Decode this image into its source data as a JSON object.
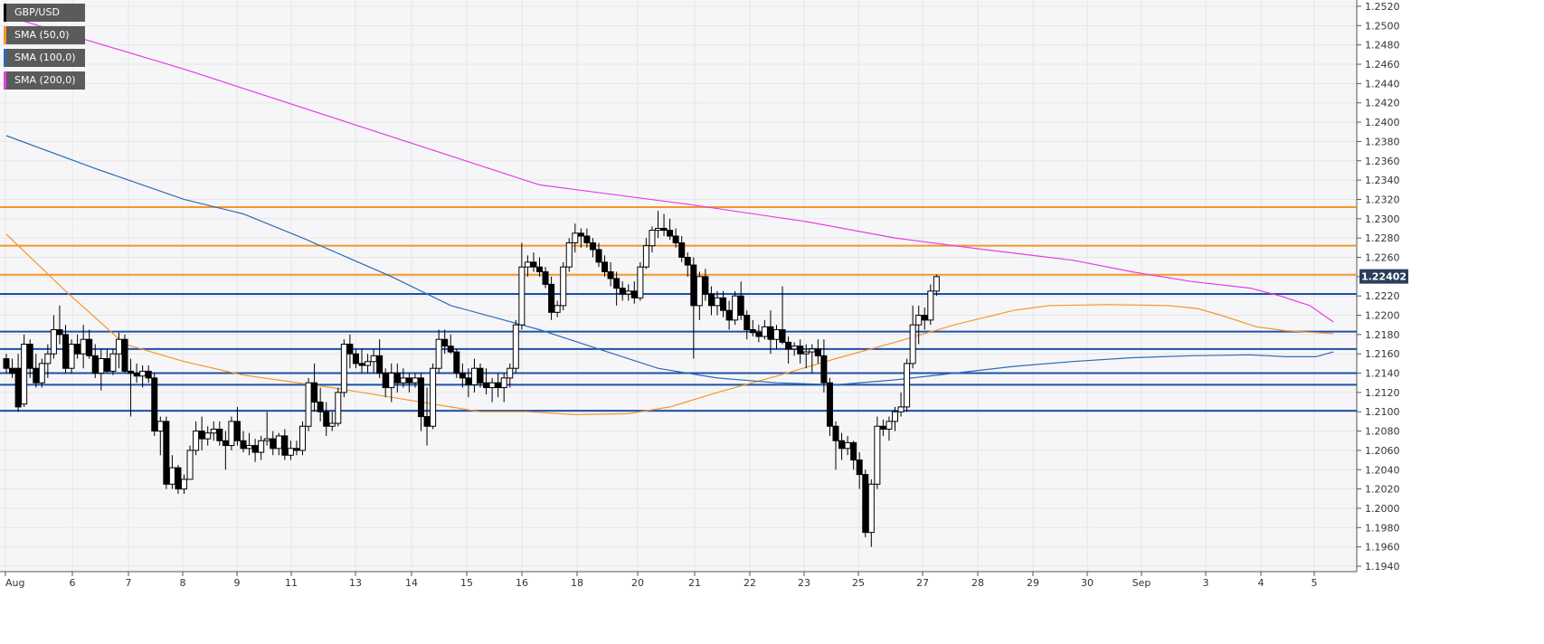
{
  "chart_data": {
    "type": "candlestick",
    "symbol": "GBP/USD",
    "last_price": "1.22402",
    "ylim": [
      1.194,
      1.252
    ],
    "grid": true,
    "y_ticks": [
      "1.1940",
      "1.1960",
      "1.1980",
      "1.2000",
      "1.2020",
      "1.2040",
      "1.2060",
      "1.2080",
      "1.2100",
      "1.2120",
      "1.2140",
      "1.2160",
      "1.2180",
      "1.2200",
      "1.2220",
      "1.2240",
      "1.2260",
      "1.2280",
      "1.2300",
      "1.2320",
      "1.2340",
      "1.2360",
      "1.2380",
      "1.2400",
      "1.2420",
      "1.2440",
      "1.2460",
      "1.2480",
      "1.2500",
      "1.2520"
    ],
    "x_ticks": [
      "Aug",
      "6",
      "7",
      "8",
      "9",
      "11",
      "13",
      "14",
      "15",
      "16",
      "18",
      "20",
      "21",
      "22",
      "23",
      "25",
      "27",
      "28",
      "29",
      "30",
      "Sep",
      "3",
      "4",
      "5"
    ],
    "legend": {
      "placement": "top-left",
      "items": [
        {
          "label": "GBP/USD",
          "color": "#000000"
        },
        {
          "label": "SMA (50,0)",
          "color": "#f5962a"
        },
        {
          "label": "SMA (100,0)",
          "color": "#2c6cb7"
        },
        {
          "label": "SMA (200,0)",
          "color": "#e63ce6"
        }
      ]
    },
    "colors": {
      "bull": "#ffffff",
      "bear": "#000000",
      "wick": "#000000",
      "grid": "#e6e6e6",
      "axis": "#555555",
      "label_bg": "#2b3f5c"
    },
    "horizontal_levels": [
      {
        "value": 1.2312,
        "color": "#f5962a"
      },
      {
        "value": 1.2272,
        "color": "#f5962a"
      },
      {
        "value": 1.2242,
        "color": "#f5962a"
      },
      {
        "value": 1.2222,
        "color": "#1e4fa8"
      },
      {
        "value": 1.2183,
        "color": "#1e4fa8"
      },
      {
        "value": 1.2165,
        "color": "#1e4fa8"
      },
      {
        "value": 1.214,
        "color": "#1e4fa8"
      },
      {
        "value": 1.2128,
        "color": "#1e4fa8"
      },
      {
        "value": 1.2101,
        "color": "#1e4fa8"
      }
    ],
    "candles": [
      [
        1.2155,
        1.216,
        1.214,
        1.2145
      ],
      [
        1.2145,
        1.2155,
        1.2135,
        1.214
      ],
      [
        1.2145,
        1.216,
        1.21,
        1.2105
      ],
      [
        1.2108,
        1.218,
        1.2105,
        1.217
      ],
      [
        1.217,
        1.2175,
        1.2135,
        1.2145
      ],
      [
        1.2145,
        1.216,
        1.2125,
        1.213
      ],
      [
        1.213,
        1.2155,
        1.2125,
        1.215
      ],
      [
        1.215,
        1.217,
        1.2135,
        1.216
      ],
      [
        1.216,
        1.22,
        1.2155,
        1.2185
      ],
      [
        1.2185,
        1.221,
        1.217,
        1.218
      ],
      [
        1.218,
        1.219,
        1.214,
        1.2145
      ],
      [
        1.2145,
        1.2175,
        1.214,
        1.217
      ],
      [
        1.217,
        1.218,
        1.2155,
        1.216
      ],
      [
        1.216,
        1.219,
        1.2145,
        1.2175
      ],
      [
        1.2175,
        1.2185,
        1.2155,
        1.2158
      ],
      [
        1.2158,
        1.217,
        1.2135,
        1.214
      ],
      [
        1.214,
        1.2165,
        1.2122,
        1.2155
      ],
      [
        1.2155,
        1.2165,
        1.214,
        1.2142
      ],
      [
        1.2142,
        1.2165,
        1.2138,
        1.216
      ],
      [
        1.216,
        1.2182,
        1.2145,
        1.2175
      ],
      [
        1.2175,
        1.218,
        1.214,
        1.2142
      ],
      [
        1.2142,
        1.2155,
        1.2095,
        1.214
      ],
      [
        1.214,
        1.215,
        1.213,
        1.2137
      ],
      [
        1.2137,
        1.2148,
        1.2125,
        1.2142
      ],
      [
        1.2142,
        1.2148,
        1.213,
        1.2135
      ],
      [
        1.2135,
        1.214,
        1.2075,
        1.208
      ],
      [
        1.208,
        1.2095,
        1.2055,
        1.209
      ],
      [
        1.209,
        1.2095,
        1.202,
        1.2025
      ],
      [
        1.2025,
        1.2055,
        1.202,
        1.2042
      ],
      [
        1.2042,
        1.2045,
        1.2015,
        1.202
      ],
      [
        1.202,
        1.2035,
        1.2015,
        1.203
      ],
      [
        1.203,
        1.2065,
        1.203,
        1.206
      ],
      [
        1.206,
        1.209,
        1.2055,
        1.208
      ],
      [
        1.208,
        1.2095,
        1.206,
        1.2072
      ],
      [
        1.2072,
        1.2085,
        1.2065,
        1.2078
      ],
      [
        1.2078,
        1.209,
        1.207,
        1.2082
      ],
      [
        1.2082,
        1.209,
        1.2065,
        1.207
      ],
      [
        1.207,
        1.208,
        1.204,
        1.2065
      ],
      [
        1.2065,
        1.2095,
        1.206,
        1.209
      ],
      [
        1.209,
        1.2105,
        1.2065,
        1.207
      ],
      [
        1.207,
        1.208,
        1.2058,
        1.2062
      ],
      [
        1.2062,
        1.2078,
        1.2055,
        1.2065
      ],
      [
        1.2065,
        1.2072,
        1.2048,
        1.2058
      ],
      [
        1.2058,
        1.2075,
        1.205,
        1.207
      ],
      [
        1.207,
        1.21,
        1.2065,
        1.2072
      ],
      [
        1.2072,
        1.208,
        1.2055,
        1.2062
      ],
      [
        1.2062,
        1.2078,
        1.2055,
        1.2075
      ],
      [
        1.2075,
        1.2082,
        1.205,
        1.2055
      ],
      [
        1.2055,
        1.207,
        1.205,
        1.2062
      ],
      [
        1.2062,
        1.207,
        1.2055,
        1.206
      ],
      [
        1.206,
        1.209,
        1.2055,
        1.2085
      ],
      [
        1.2085,
        1.2135,
        1.208,
        1.213
      ],
      [
        1.213,
        1.215,
        1.21,
        1.211
      ],
      [
        1.211,
        1.2125,
        1.209,
        1.21
      ],
      [
        1.21,
        1.211,
        1.2075,
        1.2085
      ],
      [
        1.2085,
        1.21,
        1.208,
        1.2088
      ],
      [
        1.2088,
        1.2125,
        1.2085,
        1.212
      ],
      [
        1.212,
        1.2175,
        1.2115,
        1.217
      ],
      [
        1.217,
        1.218,
        1.2145,
        1.216
      ],
      [
        1.216,
        1.2165,
        1.2145,
        1.215
      ],
      [
        1.215,
        1.2165,
        1.214,
        1.2148
      ],
      [
        1.2148,
        1.216,
        1.214,
        1.2152
      ],
      [
        1.2152,
        1.2165,
        1.214,
        1.2158
      ],
      [
        1.2158,
        1.2175,
        1.2135,
        1.214
      ],
      [
        1.214,
        1.2145,
        1.2115,
        1.2125
      ],
      [
        1.2125,
        1.215,
        1.211,
        1.214
      ],
      [
        1.214,
        1.215,
        1.212,
        1.213
      ],
      [
        1.213,
        1.2145,
        1.2125,
        1.2135
      ],
      [
        1.2135,
        1.214,
        1.212,
        1.213
      ],
      [
        1.213,
        1.214,
        1.2125,
        1.2135
      ],
      [
        1.2135,
        1.214,
        1.208,
        1.2095
      ],
      [
        1.2095,
        1.2125,
        1.2065,
        1.2085
      ],
      [
        1.2085,
        1.215,
        1.2082,
        1.2145
      ],
      [
        1.2145,
        1.2185,
        1.214,
        1.2175
      ],
      [
        1.2175,
        1.2185,
        1.216,
        1.2168
      ],
      [
        1.2168,
        1.218,
        1.216,
        1.2162
      ],
      [
        1.2162,
        1.2165,
        1.2135,
        1.214
      ],
      [
        1.214,
        1.215,
        1.2125,
        1.2135
      ],
      [
        1.2135,
        1.2145,
        1.2115,
        1.2128
      ],
      [
        1.2128,
        1.2155,
        1.212,
        1.2145
      ],
      [
        1.2145,
        1.215,
        1.2125,
        1.213
      ],
      [
        1.213,
        1.2145,
        1.2118,
        1.2125
      ],
      [
        1.2125,
        1.2135,
        1.211,
        1.213
      ],
      [
        1.213,
        1.214,
        1.2115,
        1.2125
      ],
      [
        1.2125,
        1.214,
        1.211,
        1.2135
      ],
      [
        1.2135,
        1.215,
        1.2125,
        1.2145
      ],
      [
        1.2145,
        1.2195,
        1.214,
        1.219
      ],
      [
        1.219,
        1.2275,
        1.2185,
        1.225
      ],
      [
        1.225,
        1.2262,
        1.224,
        1.2255
      ],
      [
        1.2255,
        1.2265,
        1.2245,
        1.225
      ],
      [
        1.225,
        1.226,
        1.224,
        1.2245
      ],
      [
        1.2245,
        1.225,
        1.2228,
        1.2232
      ],
      [
        1.2232,
        1.224,
        1.2195,
        1.2203
      ],
      [
        1.2203,
        1.2215,
        1.2198,
        1.221
      ],
      [
        1.221,
        1.2255,
        1.2205,
        1.225
      ],
      [
        1.225,
        1.228,
        1.2245,
        1.2275
      ],
      [
        1.2275,
        1.2295,
        1.2265,
        1.2285
      ],
      [
        1.2285,
        1.229,
        1.227,
        1.2282
      ],
      [
        1.2282,
        1.229,
        1.227,
        1.2275
      ],
      [
        1.2275,
        1.228,
        1.226,
        1.2268
      ],
      [
        1.2268,
        1.2275,
        1.225,
        1.2255
      ],
      [
        1.2255,
        1.2262,
        1.224,
        1.2245
      ],
      [
        1.2245,
        1.2255,
        1.223,
        1.2238
      ],
      [
        1.2238,
        1.2245,
        1.221,
        1.2228
      ],
      [
        1.2228,
        1.2235,
        1.2215,
        1.2222
      ],
      [
        1.2222,
        1.2232,
        1.2215,
        1.2225
      ],
      [
        1.2225,
        1.2235,
        1.2212,
        1.2218
      ],
      [
        1.2218,
        1.2255,
        1.2215,
        1.225
      ],
      [
        1.225,
        1.228,
        1.2248,
        1.2272
      ],
      [
        1.2272,
        1.2292,
        1.2265,
        1.2288
      ],
      [
        1.2288,
        1.2308,
        1.228,
        1.229
      ],
      [
        1.229,
        1.2305,
        1.2282,
        1.2288
      ],
      [
        1.2288,
        1.23,
        1.2278,
        1.2282
      ],
      [
        1.2282,
        1.229,
        1.227,
        1.2275
      ],
      [
        1.2275,
        1.2282,
        1.2255,
        1.226
      ],
      [
        1.226,
        1.2265,
        1.224,
        1.2252
      ],
      [
        1.2252,
        1.226,
        1.2155,
        1.221
      ],
      [
        1.221,
        1.2245,
        1.2195,
        1.224
      ],
      [
        1.224,
        1.2248,
        1.2215,
        1.2222
      ],
      [
        1.2222,
        1.223,
        1.22,
        1.221
      ],
      [
        1.221,
        1.2225,
        1.22,
        1.2218
      ],
      [
        1.2218,
        1.2225,
        1.2198,
        1.2205
      ],
      [
        1.2205,
        1.2215,
        1.2185,
        1.2195
      ],
      [
        1.2195,
        1.2225,
        1.219,
        1.222
      ],
      [
        1.222,
        1.2235,
        1.2195,
        1.22
      ],
      [
        1.22,
        1.2205,
        1.2175,
        1.2185
      ],
      [
        1.2185,
        1.2195,
        1.2178,
        1.2182
      ],
      [
        1.2182,
        1.219,
        1.2172,
        1.2178
      ],
      [
        1.2178,
        1.2195,
        1.2175,
        1.2188
      ],
      [
        1.2188,
        1.2205,
        1.216,
        1.2175
      ],
      [
        1.2175,
        1.219,
        1.2165,
        1.2185
      ],
      [
        1.2185,
        1.223,
        1.217,
        1.2172
      ],
      [
        1.2172,
        1.2178,
        1.215,
        1.2165
      ],
      [
        1.2165,
        1.2172,
        1.2158,
        1.2168
      ],
      [
        1.2168,
        1.2175,
        1.215,
        1.216
      ],
      [
        1.216,
        1.217,
        1.2145,
        1.2162
      ],
      [
        1.2162,
        1.217,
        1.214,
        1.2165
      ],
      [
        1.2165,
        1.2175,
        1.215,
        1.2158
      ],
      [
        1.2158,
        1.2175,
        1.212,
        1.213
      ],
      [
        1.213,
        1.2135,
        1.2075,
        1.2085
      ],
      [
        1.2085,
        1.209,
        1.204,
        1.207
      ],
      [
        1.207,
        1.2078,
        1.205,
        1.2062
      ],
      [
        1.2062,
        1.2075,
        1.2055,
        1.2068
      ],
      [
        1.2068,
        1.207,
        1.204,
        1.205
      ],
      [
        1.205,
        1.2058,
        1.202,
        1.2035
      ],
      [
        1.2035,
        1.204,
        1.197,
        1.1975
      ],
      [
        1.1975,
        1.203,
        1.196,
        1.2025
      ],
      [
        1.2025,
        1.2095,
        1.202,
        1.2085
      ],
      [
        1.2085,
        1.2092,
        1.2075,
        1.2082
      ],
      [
        1.2082,
        1.2095,
        1.207,
        1.209
      ],
      [
        1.209,
        1.2105,
        1.208,
        1.21
      ],
      [
        1.21,
        1.212,
        1.2095,
        1.2105
      ],
      [
        1.2105,
        1.2155,
        1.21,
        1.215
      ],
      [
        1.215,
        1.221,
        1.2145,
        1.219
      ],
      [
        1.219,
        1.221,
        1.217,
        1.22
      ],
      [
        1.22,
        1.2208,
        1.2185,
        1.2195
      ],
      [
        1.2195,
        1.2232,
        1.219,
        1.2225
      ],
      [
        1.2225,
        1.2242,
        1.222,
        1.224
      ]
    ],
    "sma": [
      {
        "name": "SMA (50,0)",
        "color": "#f5962a",
        "points": [
          [
            0,
            1.2284
          ],
          [
            10,
            1.2225
          ],
          [
            20,
            1.217
          ],
          [
            30,
            1.2152
          ],
          [
            40,
            1.2138
          ],
          [
            55,
            1.2125
          ],
          [
            65,
            1.2115
          ],
          [
            75,
            1.2105
          ],
          [
            80,
            1.21
          ],
          [
            88,
            1.21
          ],
          [
            96,
            1.2097
          ],
          [
            105,
            1.2098
          ],
          [
            112,
            1.2105
          ],
          [
            120,
            1.212
          ],
          [
            130,
            1.2137
          ],
          [
            140,
            1.2155
          ],
          [
            150,
            1.2172
          ],
          [
            160,
            1.219
          ],
          [
            170,
            1.2205
          ],
          [
            176,
            1.221
          ],
          [
            186,
            1.2211
          ],
          [
            196,
            1.221
          ],
          [
            201,
            1.2207
          ],
          [
            205,
            1.22
          ],
          [
            211,
            1.2188
          ],
          [
            216,
            1.2184
          ],
          [
            221,
            1.2182
          ],
          [
            224,
            1.2181
          ]
        ]
      },
      {
        "name": "SMA (100,0)",
        "color": "#2c6cb7",
        "points": [
          [
            0,
            1.2386
          ],
          [
            15,
            1.2352
          ],
          [
            30,
            1.232
          ],
          [
            40,
            1.2305
          ],
          [
            50,
            1.228
          ],
          [
            65,
            1.224
          ],
          [
            75,
            1.221
          ],
          [
            90,
            1.2185
          ],
          [
            100,
            1.2165
          ],
          [
            110,
            1.2145
          ],
          [
            120,
            1.2135
          ],
          [
            130,
            1.213
          ],
          [
            140,
            1.2128
          ],
          [
            150,
            1.2133
          ],
          [
            160,
            1.214
          ],
          [
            170,
            1.2147
          ],
          [
            180,
            1.2152
          ],
          [
            190,
            1.2156
          ],
          [
            200,
            1.2158
          ],
          [
            210,
            1.2159
          ],
          [
            216,
            1.2157
          ],
          [
            221,
            1.2157
          ],
          [
            224,
            1.2162
          ]
        ]
      },
      {
        "name": "SMA (200,0)",
        "color": "#e63ce6",
        "points": [
          [
            0,
            1.251
          ],
          [
            30,
            1.2455
          ],
          [
            60,
            1.2395
          ],
          [
            90,
            1.2335
          ],
          [
            115,
            1.2315
          ],
          [
            135,
            1.2297
          ],
          [
            150,
            1.228
          ],
          [
            165,
            1.2268
          ],
          [
            180,
            1.2257
          ],
          [
            190,
            1.2245
          ],
          [
            200,
            1.2235
          ],
          [
            210,
            1.2228
          ],
          [
            215,
            1.222
          ],
          [
            220,
            1.221
          ],
          [
            224,
            1.2193
          ]
        ]
      }
    ]
  }
}
